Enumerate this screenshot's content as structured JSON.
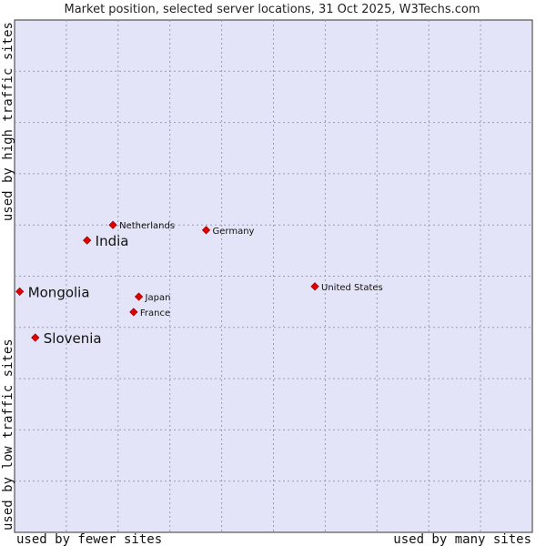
{
  "chart_data": {
    "type": "scatter",
    "title": "Market position, selected server locations, 31 Oct 2025, W3Techs.com",
    "xlabel_left": "used by fewer sites",
    "xlabel_right": "used by many sites",
    "ylabel_bottom": "used by low traffic sites",
    "ylabel_top": "used by high traffic sites",
    "xlim": [
      0,
      10
    ],
    "ylim": [
      0,
      10
    ],
    "grid": true,
    "points": [
      {
        "name": "Netherlands",
        "x": 1.9,
        "y": 6.0,
        "highlight": false
      },
      {
        "name": "India",
        "x": 1.4,
        "y": 5.7,
        "highlight": true
      },
      {
        "name": "Germany",
        "x": 3.7,
        "y": 5.9,
        "highlight": false
      },
      {
        "name": "United States",
        "x": 5.8,
        "y": 4.8,
        "highlight": false
      },
      {
        "name": "Mongolia",
        "x": 0.1,
        "y": 4.7,
        "highlight": true
      },
      {
        "name": "Japan",
        "x": 2.4,
        "y": 4.6,
        "highlight": false
      },
      {
        "name": "France",
        "x": 2.3,
        "y": 4.3,
        "highlight": false
      },
      {
        "name": "Slovenia",
        "x": 0.4,
        "y": 3.8,
        "highlight": true
      }
    ]
  }
}
